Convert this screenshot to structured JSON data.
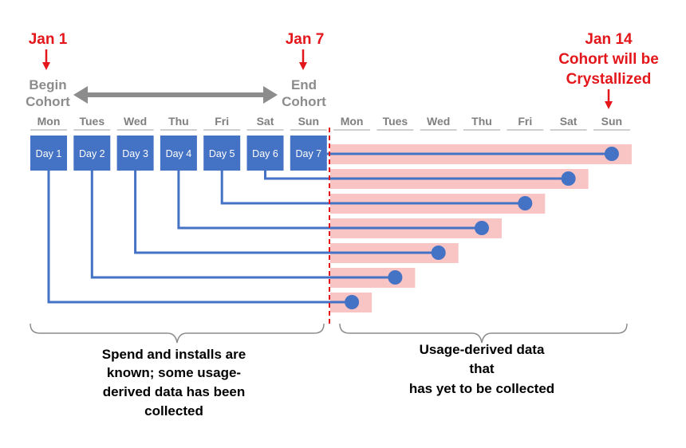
{
  "markers": {
    "start": {
      "date": "Jan 1",
      "label_line1": "Begin",
      "label_line2": "Cohort"
    },
    "end": {
      "date": "Jan 7",
      "label_line1": "End",
      "label_line2": "Cohort"
    },
    "crystal": {
      "date": "Jan 14",
      "label_line1": "Cohort will be",
      "label_line2": "Crystallized"
    }
  },
  "weekdays": [
    "Mon",
    "Tues",
    "Wed",
    "Thu",
    "Fri",
    "Sat",
    "Sun",
    "Mon",
    "Tues",
    "Wed",
    "Thu",
    "Fri",
    "Sat",
    "Sun"
  ],
  "cohort_days": [
    "Day 1",
    "Day 2",
    "Day 3",
    "Day 4",
    "Day 5",
    "Day 6",
    "Day 7"
  ],
  "captions": {
    "left": [
      "Spend and installs are",
      "known; some usage-",
      "derived data has been",
      "collected"
    ],
    "right": [
      "Usage-derived data",
      "that",
      "has yet to be collected"
    ]
  },
  "colors": {
    "red": "#e3171b",
    "blue": "#4472c4",
    "pink": "#f8c4c4",
    "gray": "#8c8c8c"
  }
}
